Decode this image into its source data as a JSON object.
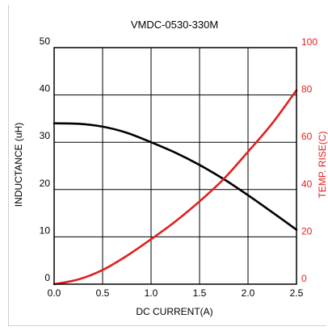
{
  "chart_data": {
    "type": "line",
    "title": "VMDC-0530-330M",
    "xlabel": "DC CURRENT(A)",
    "ylabel_left": "INDUCTANCE (uH)",
    "ylabel_right": "TEMP. RISE(C)",
    "xlim": [
      0,
      2.5
    ],
    "ylim_left": [
      0,
      50
    ],
    "ylim_right": [
      0,
      100
    ],
    "x_ticks": [
      "0.0",
      "0.5",
      "1.0",
      "1.5",
      "2.0",
      "2.5"
    ],
    "y_left_ticks": [
      "0",
      "10",
      "20",
      "30",
      "40",
      "50"
    ],
    "y_right_ticks": [
      "0",
      "20",
      "40",
      "60",
      "80",
      "100"
    ],
    "grid": true,
    "series": [
      {
        "axis": "left",
        "color": "#000000",
        "x": [
          0,
          0.25,
          0.5,
          0.75,
          1.0,
          1.25,
          1.5,
          1.75,
          2.0,
          2.25,
          2.5
        ],
        "values": [
          34,
          33.9,
          33.3,
          32,
          30,
          27.8,
          25.2,
          22.2,
          18.8,
          15.2,
          11.5
        ]
      },
      {
        "axis": "right",
        "color": "#e02020",
        "x": [
          0,
          0.25,
          0.5,
          0.75,
          1.0,
          1.25,
          1.5,
          1.75,
          2.0,
          2.25,
          2.5
        ],
        "values": [
          0,
          2,
          6,
          12,
          19,
          26.5,
          35,
          44.5,
          56,
          68,
          82
        ]
      }
    ]
  }
}
